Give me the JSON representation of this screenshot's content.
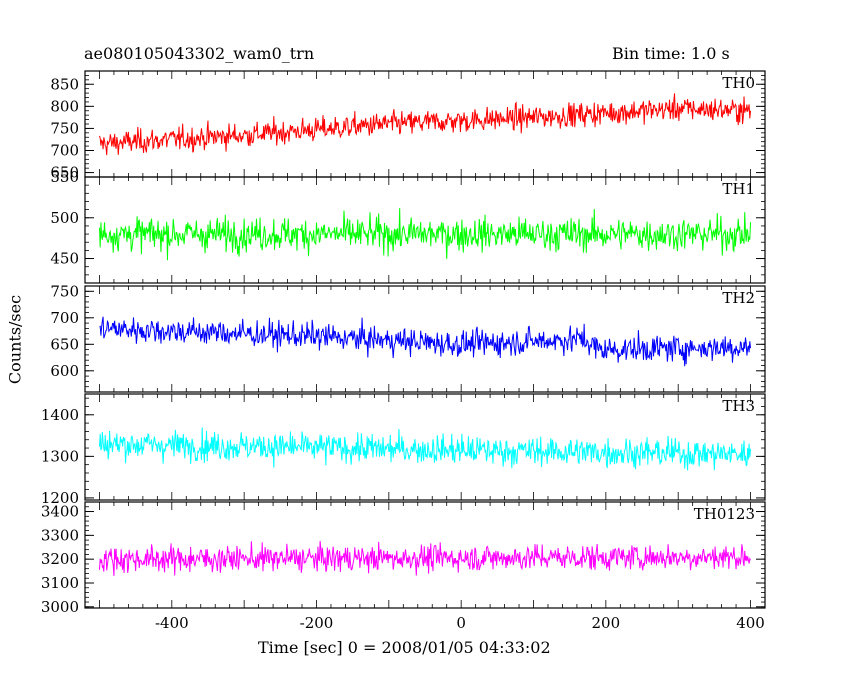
{
  "header": {
    "title": "ae080105043302_wam0_trn",
    "bin_time": "Bin time: 1.0 s"
  },
  "chart_data": {
    "type": "line",
    "xlabel": "Time [sec] 0 = 2008/01/05 04:33:02",
    "ylabel": "Counts/sec",
    "xlim": [
      -520,
      420
    ],
    "x_ticks": [
      -400,
      -200,
      0,
      200,
      400
    ],
    "x_start": -500,
    "x_end": 400,
    "bin_seconds": 1.0,
    "panels": [
      {
        "name": "TH0",
        "color": "#ff0000",
        "ylim": [
          640,
          880
        ],
        "y_ticks": [
          650,
          700,
          750,
          800,
          850
        ],
        "trend": [
          [
            -500,
            715
          ],
          [
            -300,
            735
          ],
          [
            -100,
            760
          ],
          [
            100,
            775
          ],
          [
            300,
            795
          ],
          [
            400,
            790
          ]
        ],
        "noise_amplitude": 35
      },
      {
        "name": "TH1",
        "color": "#00ff00",
        "ylim": [
          420,
          550
        ],
        "y_ticks": [
          450,
          500,
          550
        ],
        "trend": [
          [
            -500,
            480
          ],
          [
            400,
            480
          ]
        ],
        "noise_amplitude": 26
      },
      {
        "name": "TH2",
        "color": "#0000ff",
        "ylim": [
          560,
          760
        ],
        "y_ticks": [
          600,
          650,
          700,
          750
        ],
        "trend": [
          [
            -500,
            680
          ],
          [
            -200,
            665
          ],
          [
            0,
            650
          ],
          [
            170,
            660
          ],
          [
            190,
            640
          ],
          [
            400,
            645
          ]
        ],
        "noise_amplitude": 32
      },
      {
        "name": "TH3",
        "color": "#00ffff",
        "ylim": [
          1195,
          1450
        ],
        "y_ticks": [
          1200,
          1300,
          1400
        ],
        "trend": [
          [
            -500,
            1330
          ],
          [
            0,
            1315
          ],
          [
            400,
            1305
          ]
        ],
        "noise_amplitude": 45
      },
      {
        "name": "TH0123",
        "color": "#ff00ff",
        "ylim": [
          2995,
          3440
        ],
        "y_ticks": [
          3000,
          3100,
          3200,
          3300,
          3400
        ],
        "trend": [
          [
            -500,
            3200
          ],
          [
            400,
            3210
          ]
        ],
        "noise_amplitude": 70
      }
    ]
  }
}
